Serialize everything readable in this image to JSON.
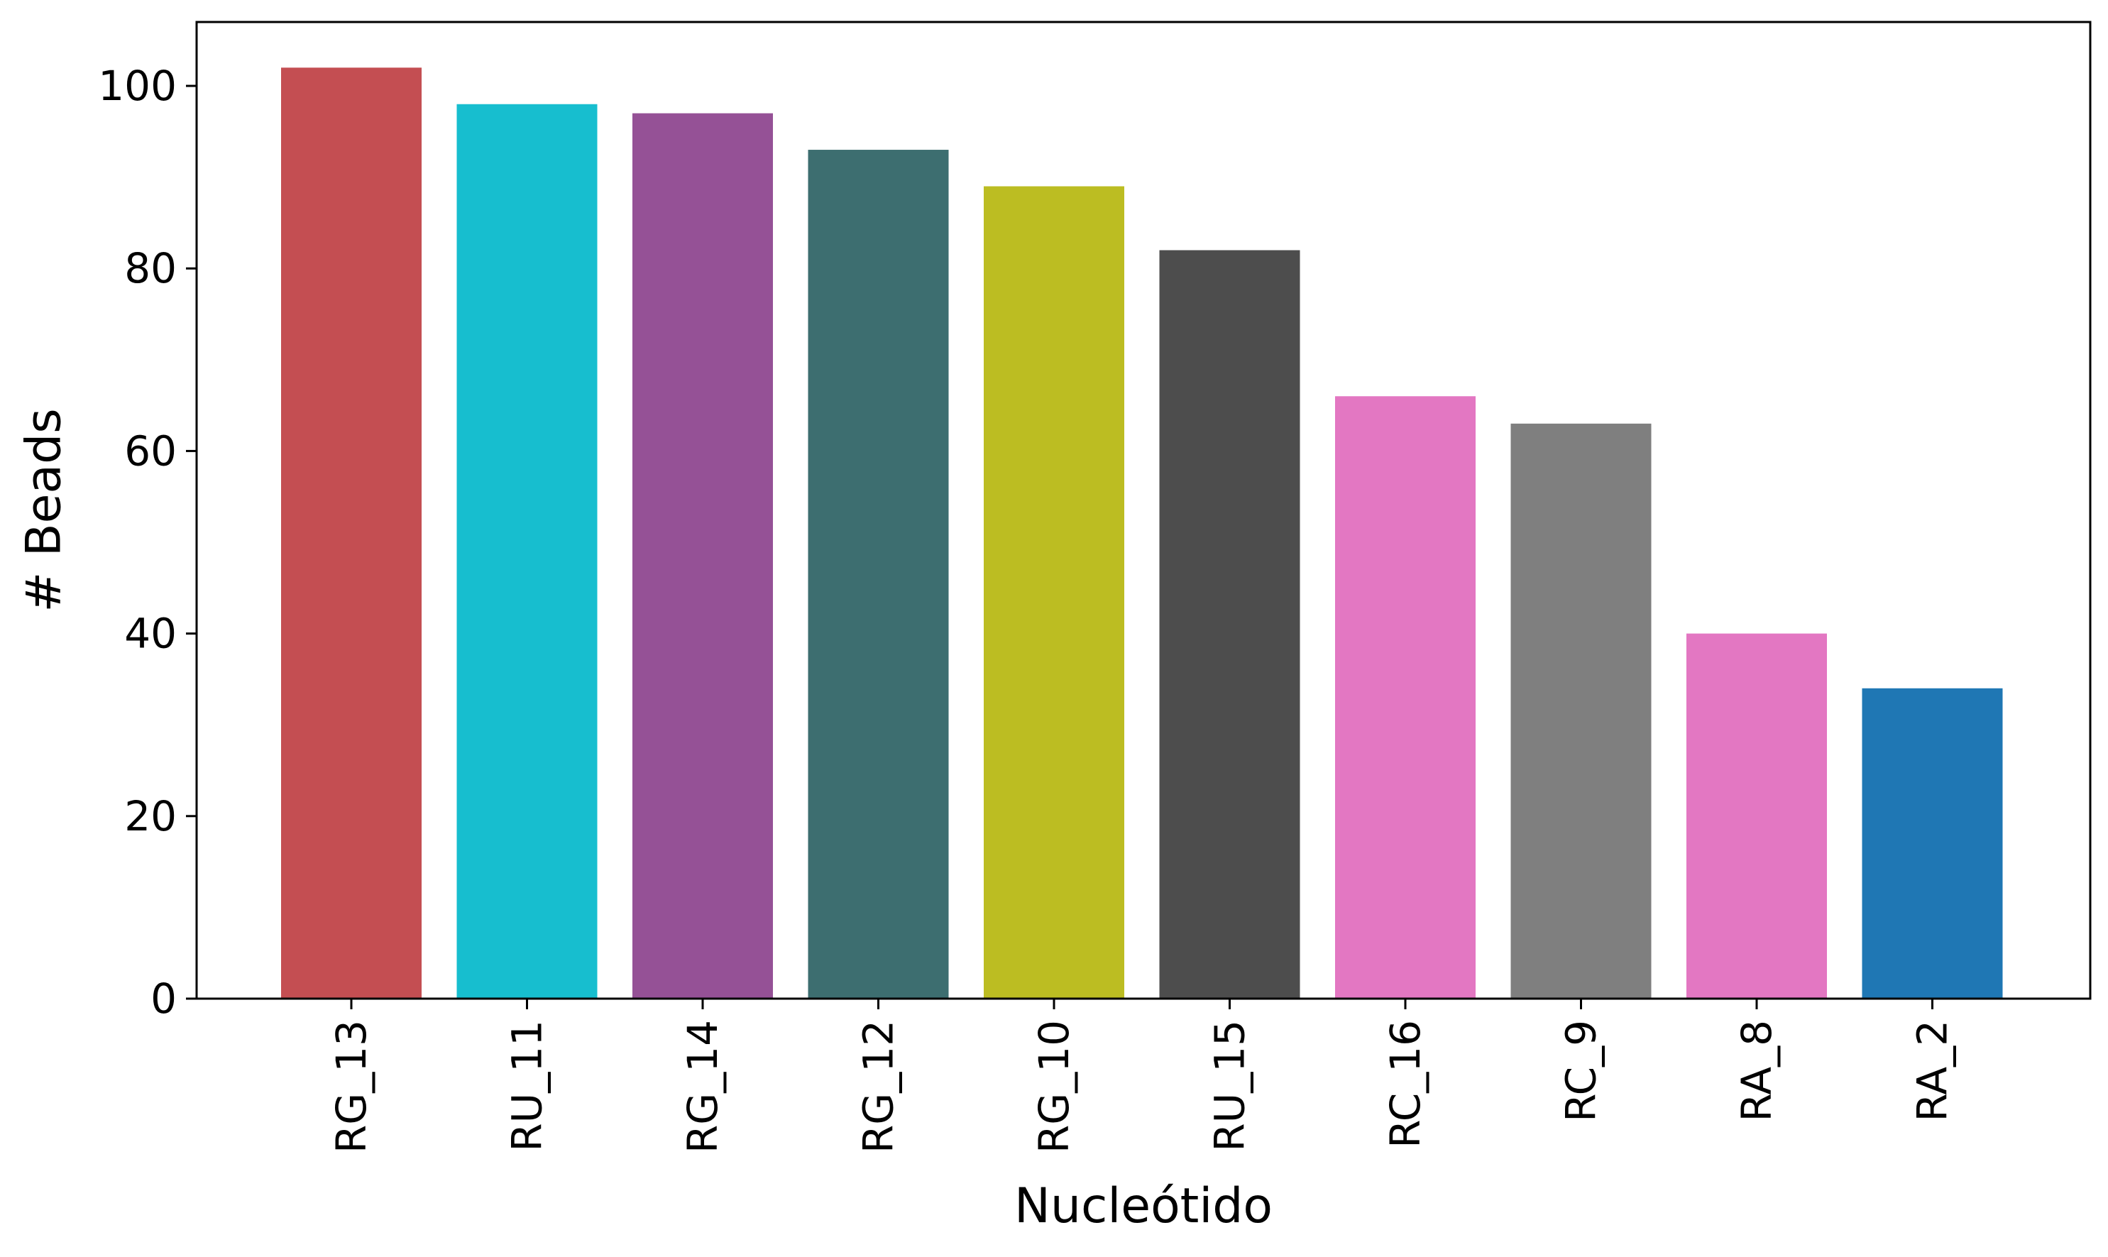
{
  "chart_data": {
    "type": "bar",
    "title": "",
    "xlabel": "Nucleótido",
    "ylabel": "# Beads",
    "categories": [
      "RG_13",
      "RU_11",
      "RG_14",
      "RG_12",
      "RG_10",
      "RU_15",
      "RC_16",
      "RC_9",
      "RA_8",
      "RA_2"
    ],
    "values": [
      102,
      98,
      97,
      93,
      89,
      82,
      66,
      63,
      40,
      34
    ],
    "colors": [
      "#c44e52",
      "#17becf",
      "#955196",
      "#3d6e70",
      "#bcbd22",
      "#4d4d4d",
      "#e377c2",
      "#7f7f7f",
      "#e377c2",
      "#1f77b4"
    ],
    "ylim": [
      0,
      107
    ],
    "yticks": [
      0,
      20,
      40,
      60,
      80,
      100
    ],
    "grid": false,
    "legend": "none"
  }
}
